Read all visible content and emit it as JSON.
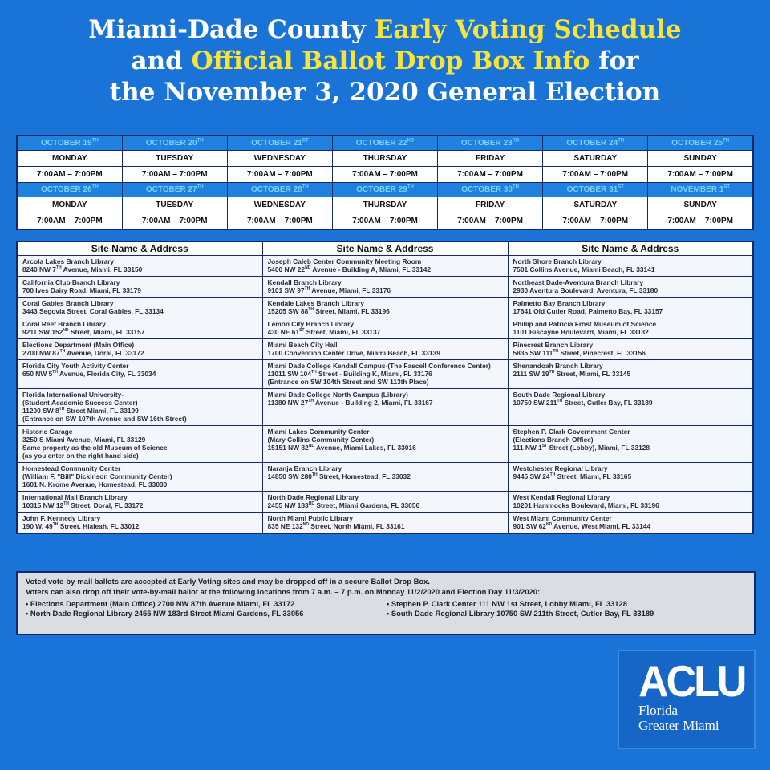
{
  "title": {
    "lines": [
      [
        {
          "text": "Miami-Dade County ",
          "color": "#ffffff"
        },
        {
          "text": "Early Voting Schedule",
          "color": "#f7e43a"
        }
      ],
      [
        {
          "text": "and ",
          "color": "#ffffff"
        },
        {
          "text": "Official Ballot Drop Box Info",
          "color": "#f7e43a"
        },
        {
          "text": " for",
          "color": "#ffffff"
        }
      ],
      [
        {
          "text": "the November 3, 2020 General Election",
          "color": "#ffffff"
        }
      ]
    ]
  },
  "schedule": {
    "weeks": [
      [
        {
          "date": "OCTOBER 19TH",
          "day": "MONDAY",
          "hours": "7:00AM – 7:00PM"
        },
        {
          "date": "OCTOBER 20TH",
          "day": "TUESDAY",
          "hours": "7:00AM – 7:00PM"
        },
        {
          "date": "OCTOBER 21ST",
          "day": "WEDNESDAY",
          "hours": "7:00AM – 7:00PM"
        },
        {
          "date": "OCTOBER 22ND",
          "day": "THURSDAY",
          "hours": "7:00AM – 7:00PM"
        },
        {
          "date": "OCTOBER 23RD",
          "day": "FRIDAY",
          "hours": "7:00AM – 7:00PM"
        },
        {
          "date": "OCTOBER 24TH",
          "day": "SATURDAY",
          "hours": "7:00AM – 7:00PM"
        },
        {
          "date": "OCTOBER 25TH",
          "day": "SUNDAY",
          "hours": "7:00AM – 7:00PM"
        }
      ],
      [
        {
          "date": "OCTOBER 26TH",
          "day": "MONDAY",
          "hours": "7:00AM – 7:00PM"
        },
        {
          "date": "OCTOBER 27TH",
          "day": "TUESDAY",
          "hours": "7:00AM – 7:00PM"
        },
        {
          "date": "OCTOBER 28TH",
          "day": "WEDNESDAY",
          "hours": "7:00AM – 7:00PM"
        },
        {
          "date": "OCTOBER 29TH",
          "day": "THURSDAY",
          "hours": "7:00AM – 7:00PM"
        },
        {
          "date": "OCTOBER 30TH",
          "day": "FRIDAY",
          "hours": "7:00AM – 7:00PM"
        },
        {
          "date": "OCTOBER 31ST",
          "day": "SATURDAY",
          "hours": "7:00AM – 7:00PM"
        },
        {
          "date": "NOVEMBER 1ST",
          "day": "SUNDAY",
          "hours": "7:00AM – 7:00PM"
        }
      ]
    ]
  },
  "sites": {
    "headers": [
      "Site Name & Address",
      "Site Name & Address",
      "Site Name & Address"
    ],
    "rows": [
      [
        [
          "Arcola Lakes Branch Library",
          "8240 NW 7TH Avenue, Miami, FL 33150"
        ],
        [
          "Joseph Caleb Center Community Meeting Room",
          "5400 NW 22ND Avenue - Building A, Miami, FL 33142"
        ],
        [
          "North Shore Branch Library",
          "7501 Collins Avenue, Miami Beach, FL 33141"
        ]
      ],
      [
        [
          "California Club Branch Library",
          "700 Ives Dairy Road, Miami, FL 33179"
        ],
        [
          "Kendall Branch Library",
          "9101 SW 97TH Avenue, Miami, FL 33176"
        ],
        [
          "Northeast Dade-Aventura Branch Library",
          "2930 Aventura Boulevard, Aventura, FL 33180"
        ]
      ],
      [
        [
          "Coral Gables Branch Library",
          "3443 Segovia Street, Coral Gables, FL 33134"
        ],
        [
          "Kendale Lakes Branch Library",
          "15205 SW 88TH Street, Miami, FL 33196"
        ],
        [
          "Palmetto Bay Branch Library",
          "17641 Old Cutler Road, Palmetto Bay, FL 33157"
        ]
      ],
      [
        [
          "Coral Reef Branch Library",
          "9211 SW 152ND Street, Miami, FL 33157"
        ],
        [
          "Lemon City Branch Library",
          "430 NE 61ST Street, Miami, FL 33137"
        ],
        [
          "Phillip and Patricia Frost Museum of Science",
          "1101 Biscayne Boulevard, Miami, FL 33132"
        ]
      ],
      [
        [
          "Elections Department (Main Office)",
          "2700 NW 87TH Avenue, Doral, FL 33172"
        ],
        [
          "Miami Beach City Hall",
          "1700 Convention Center Drive, Miami Beach, FL 33139"
        ],
        [
          "Pinecrest Branch Library",
          "5835 SW 111TH Street, Pinecrest, FL 33156"
        ]
      ],
      [
        [
          "Florida City Youth Activity Center",
          "650 NW 5TH Avenue, Florida City, FL 33034"
        ],
        [
          "Miami Dade College Kendall Campus-(The Fascell Conference Center)",
          "11011 SW 104TH Street - Building K, Miami, FL 33176",
          "(Entrance on SW 104th Street and SW 113th Place)"
        ],
        [
          "Shenandoah Branch Library",
          "2111 SW 19TH Street, Miami, FL 33145"
        ]
      ],
      [
        [
          "Florida International University-",
          "(Student Academic Success Center)",
          "11200 SW 8TH Street Miami, FL 33199",
          "(Entrance on SW 107th Avenue and SW 16th Street)"
        ],
        [
          "Miami Dade College North Campus (Library)",
          "11380 NW 27TH Avenue - Building 2, Miami, FL 33167"
        ],
        [
          "South Dade Regional Library",
          "10750 SW 211TH Street, Cutler Bay, FL 33189"
        ]
      ],
      [
        [
          "Historic Garage",
          "3250 S Miami Avenue, Miami, FL 33129",
          "Same property as the old Museum of Science",
          "(as you enter on the right hand side)"
        ],
        [
          "Miami Lakes Community Center",
          "(Mary Collins Community Center)",
          "15151 NW 82ND Avenue, Miami Lakes, FL 33016"
        ],
        [
          "Stephen P. Clark Government Center",
          "(Elections Branch Office)",
          "111 NW 1ST Street (Lobby), Miami, FL 33128"
        ]
      ],
      [
        [
          "Homestead Community Center",
          "(William F. \"Bill\" Dickinson Community Center)",
          "1601 N. Krome Avenue, Homestead, FL 33030"
        ],
        [
          "Naranja Branch Library",
          "14850 SW 280TH Street, Homestead, FL 33032"
        ],
        [
          "Westchester Regional Library",
          "9445 SW 24TH Street, Miami, FL 33165"
        ]
      ],
      [
        [
          "International Mall Branch Library",
          "10315 NW 12TH Street, Doral, FL 33172"
        ],
        [
          "North Dade Regional Library",
          "2455 NW 183RD Street, Miami Gardens, FL 33056"
        ],
        [
          "West Kendall Regional Library",
          "10201 Hammocks Boulevard, Miami, FL 33196"
        ]
      ],
      [
        [
          "John F. Kennedy Library",
          "190 W. 49TH Street, Hialeah, FL 33012"
        ],
        [
          "North Miami Public Library",
          "835 NE 132ND Street, North Miami, FL 33161"
        ],
        [
          "West Miami Community Center",
          "901 SW 62ND Avenue, West Miami, FL 33144"
        ]
      ]
    ]
  },
  "notes": {
    "lines": [
      "Voted vote-by-mail ballots are accepted at Early Voting sites and may be dropped off in a secure Ballot Drop Box.",
      "Voters can also drop off their vote-by-mail ballot at the following locations from 7 a.m. – 7 p.m. on Monday 11/2/2020 and Election Day 11/3/2020:"
    ],
    "bullets": [
      "Elections Department (Main Office) 2700 NW 87th Avenue Miami, FL 33172",
      "Stephen P. Clark Center 111 NW 1st Street, Lobby Miami, FL 33128",
      "North Dade Regional Library 2455 NW 183rd Street Miami Gardens, FL 33056",
      "South Dade Regional Library 10750 SW 211th Street, Cutler Bay, FL 33189"
    ]
  },
  "logo": {
    "name": "ACLU",
    "lines": [
      "Florida",
      "Greater Miami"
    ]
  }
}
